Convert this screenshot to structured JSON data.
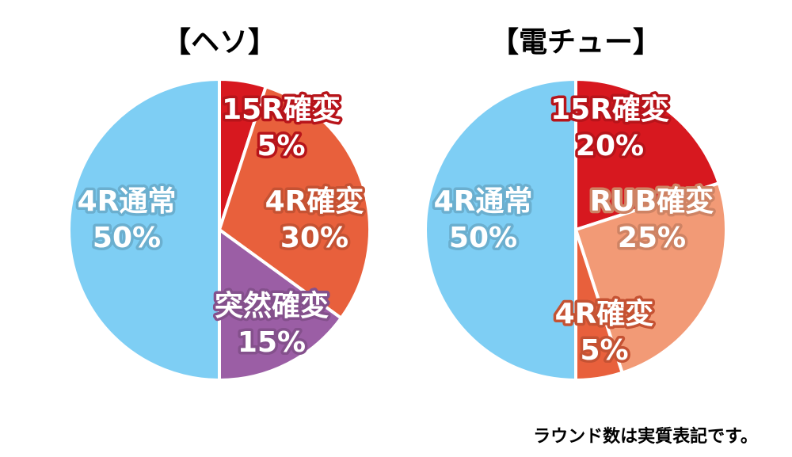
{
  "chart_data": [
    {
      "type": "pie",
      "title": "【ヘソ】",
      "categories": [
        "15R確変",
        "4R確変",
        "突然確変",
        "4R通常"
      ],
      "values": [
        5,
        30,
        15,
        50
      ],
      "value_labels": [
        "5%",
        "30%",
        "15%",
        "50%"
      ],
      "colors": [
        "#d7181f",
        "#e8603c",
        "#9b5ea5",
        "#7ecef4"
      ]
    },
    {
      "type": "pie",
      "title": "【電チュー】",
      "categories": [
        "15R確変",
        "RUB確変",
        "4R確変",
        "4R通常"
      ],
      "values": [
        20,
        25,
        5,
        50
      ],
      "value_labels": [
        "20%",
        "25%",
        "5%",
        "50%"
      ],
      "colors": [
        "#d7181f",
        "#f29a76",
        "#e8603c",
        "#7ecef4"
      ]
    }
  ],
  "note": "ラウンド数は実質表記です。"
}
